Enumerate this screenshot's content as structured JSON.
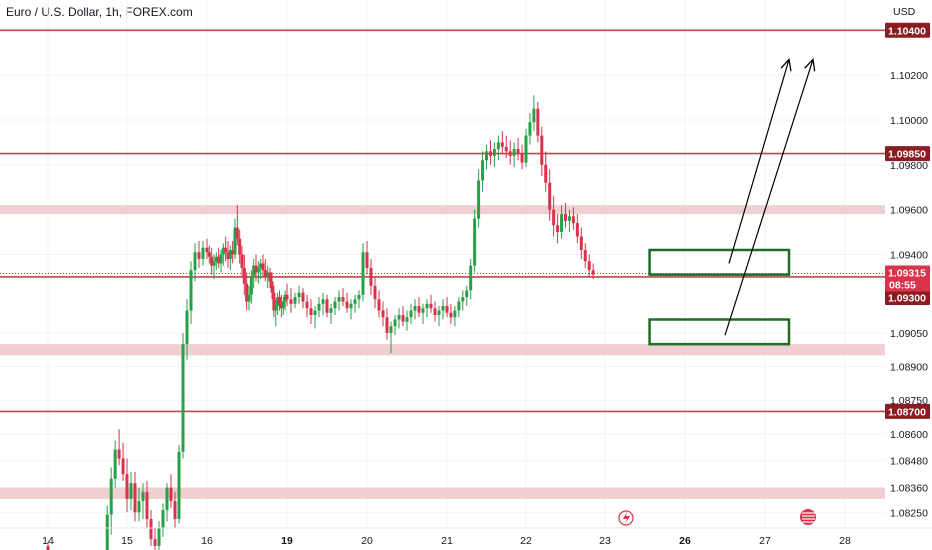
{
  "chart_data": {
    "type": "candlestick",
    "title": "Euro / U.S. Dollar, 1h, FOREX.com",
    "currency": "USD",
    "ylim": [
      1.0818,
      1.10535
    ],
    "y_ticks": [
      "1.10200",
      "1.10000",
      "1.09800",
      "1.09600",
      "1.09400",
      "1.09050",
      "1.08900",
      "1.08750",
      "1.08600",
      "1.08480",
      "1.08360",
      "1.08250"
    ],
    "x_ticks": [
      {
        "label": "14",
        "bold": false
      },
      {
        "label": "15",
        "bold": false
      },
      {
        "label": "16",
        "bold": false
      },
      {
        "label": "19",
        "bold": true
      },
      {
        "label": "20",
        "bold": false
      },
      {
        "label": "21",
        "bold": false
      },
      {
        "label": "22",
        "bold": false
      },
      {
        "label": "23",
        "bold": false
      },
      {
        "label": "26",
        "bold": true
      },
      {
        "label": "27",
        "bold": false
      },
      {
        "label": "28",
        "bold": false
      }
    ],
    "horizontal_lines": [
      {
        "price": 1.104,
        "label": "1.10400"
      },
      {
        "price": 1.0985,
        "label": "1.09850"
      },
      {
        "price": 1.087,
        "label": "1.08700"
      },
      {
        "price": 1.093,
        "label": "1.09300"
      }
    ],
    "zones": [
      {
        "from": 1.0958,
        "to": 1.0962
      },
      {
        "from": 1.0895,
        "to": 1.09
      },
      {
        "from": 1.0831,
        "to": 1.0836
      }
    ],
    "current_price": {
      "price": 1.09315,
      "label": "1.09315",
      "countdown": "08:55"
    },
    "boxes": [
      {
        "time_from": 25.6,
        "time_to": 27.3,
        "price_from": 1.0931,
        "price_to": 1.0942
      },
      {
        "time_from": 25.6,
        "time_to": 27.3,
        "price_from": 1.09,
        "price_to": 1.0911
      }
    ],
    "arrows": [
      {
        "from": [
          26.55,
          1.0936
        ],
        "to": [
          27.3,
          1.1027
        ]
      },
      {
        "from": [
          26.5,
          1.0904
        ],
        "to": [
          27.6,
          1.1027
        ]
      }
    ],
    "colors": {
      "up": "#26a246",
      "down": "#d9324a",
      "line": "#b34b4b",
      "zone": "#efcfd1",
      "box": "#1e6b25",
      "badge": "#8a1d22",
      "arrow": "#000000"
    },
    "candles": [
      [
        14.0,
        1.081,
        1.0812,
        1.08,
        1.0805
      ],
      [
        14.75,
        1.0805,
        1.0828,
        1.0801,
        1.0824
      ],
      [
        14.8,
        1.0824,
        1.0845,
        1.0815,
        1.084
      ],
      [
        14.85,
        1.084,
        1.0857,
        1.0836,
        1.0853
      ],
      [
        14.9,
        1.0853,
        1.0862,
        1.0846,
        1.0849
      ],
      [
        14.95,
        1.0849,
        1.0856,
        1.0839,
        1.0842
      ],
      [
        15.0,
        1.0842,
        1.0849,
        1.0825,
        1.0831
      ],
      [
        15.05,
        1.0831,
        1.0843,
        1.0826,
        1.0838
      ],
      [
        15.1,
        1.0838,
        1.0843,
        1.0821,
        1.0825
      ],
      [
        15.15,
        1.0825,
        1.0836,
        1.0821,
        1.083
      ],
      [
        15.2,
        1.083,
        1.0838,
        1.0822,
        1.0834
      ],
      [
        15.25,
        1.0834,
        1.0839,
        1.0818,
        1.0822
      ],
      [
        15.3,
        1.0822,
        1.0826,
        1.081,
        1.0813
      ],
      [
        15.35,
        1.0813,
        1.0818,
        1.0806,
        1.081
      ],
      [
        15.4,
        1.081,
        1.0821,
        1.0808,
        1.0818
      ],
      [
        15.45,
        1.0818,
        1.0829,
        1.0814,
        1.0826
      ],
      [
        15.5,
        1.0826,
        1.0838,
        1.0821,
        1.0836
      ],
      [
        15.55,
        1.0836,
        1.0842,
        1.0827,
        1.083
      ],
      [
        15.6,
        1.083,
        1.0834,
        1.0818,
        1.0822
      ],
      [
        15.65,
        1.0822,
        1.0855,
        1.082,
        1.0852
      ],
      [
        15.7,
        1.0852,
        1.0905,
        1.0849,
        1.09
      ],
      [
        15.75,
        1.09,
        1.092,
        1.0893,
        1.0915
      ],
      [
        15.8,
        1.0915,
        1.0937,
        1.0909,
        1.0933
      ],
      [
        15.85,
        1.0933,
        1.0945,
        1.0928,
        1.0941
      ],
      [
        15.9,
        1.0941,
        1.0946,
        1.0934,
        1.0938
      ],
      [
        15.95,
        1.0938,
        1.0946,
        1.0935,
        1.0943
      ],
      [
        16.0,
        1.0943,
        1.0947,
        1.0938,
        1.0941
      ],
      [
        16.05,
        1.0941,
        1.0944,
        1.0936,
        1.0939
      ],
      [
        16.1,
        1.0939,
        1.0943,
        1.0931,
        1.0935
      ],
      [
        16.15,
        1.0935,
        1.094,
        1.0929,
        1.0937
      ],
      [
        16.2,
        1.0937,
        1.0941,
        1.0933,
        1.0939
      ],
      [
        16.25,
        1.0939,
        1.0943,
        1.0934,
        1.0936
      ],
      [
        16.3,
        1.0936,
        1.0942,
        1.0932,
        1.094
      ],
      [
        16.35,
        1.094,
        1.0945,
        1.0935,
        1.0943
      ],
      [
        16.4,
        1.0943,
        1.0948,
        1.0937,
        1.0941
      ],
      [
        16.45,
        1.0941,
        1.0946,
        1.0934,
        1.0938
      ],
      [
        16.5,
        1.0938,
        1.0944,
        1.0933,
        1.0942
      ],
      [
        16.55,
        1.0942,
        1.0946,
        1.0936,
        1.094
      ],
      [
        16.6,
        1.094,
        1.0956,
        1.0938,
        1.0952
      ],
      [
        16.65,
        1.0952,
        1.0962,
        1.0944,
        1.0947
      ],
      [
        16.7,
        1.0947,
        1.0951,
        1.0936,
        1.094
      ],
      [
        16.75,
        1.094,
        1.0944,
        1.093,
        1.0934
      ],
      [
        16.8,
        1.0934,
        1.094,
        1.0922,
        1.0927
      ],
      [
        16.85,
        1.0927,
        1.0932,
        1.0915,
        1.0919
      ],
      [
        16.9,
        1.0919,
        1.0926,
        1.0915,
        1.0922
      ],
      [
        16.95,
        1.0922,
        1.0933,
        1.0918,
        1.093
      ],
      [
        17.0,
        1.093,
        1.0938,
        1.0925,
        1.0935
      ],
      [
        17.05,
        1.0935,
        1.094,
        1.0928,
        1.0932
      ],
      [
        17.1,
        1.0932,
        1.0937,
        1.0927,
        1.0934
      ],
      [
        17.15,
        1.0934,
        1.0938,
        1.0929,
        1.0936
      ],
      [
        17.2,
        1.0936,
        1.094,
        1.093,
        1.0933
      ],
      [
        17.25,
        1.0933,
        1.0938,
        1.0928,
        1.093
      ],
      [
        17.3,
        1.093,
        1.0935,
        1.0925,
        1.0932
      ],
      [
        17.35,
        1.0932,
        1.0934,
        1.0925,
        1.0928
      ],
      [
        18.6,
        1.0928,
        1.0932,
        1.092,
        1.0923
      ],
      [
        18.65,
        1.0923,
        1.0926,
        1.0912,
        1.0915
      ],
      [
        18.7,
        1.0915,
        1.092,
        1.0908,
        1.0917
      ],
      [
        18.75,
        1.0917,
        1.0923,
        1.0913,
        1.0921
      ],
      [
        18.8,
        1.0921,
        1.0924,
        1.0915,
        1.0918
      ],
      [
        18.85,
        1.0918,
        1.0922,
        1.0912,
        1.0916
      ],
      [
        18.9,
        1.0916,
        1.0921,
        1.0913,
        1.0919
      ],
      [
        18.95,
        1.0919,
        1.0924,
        1.0915,
        1.0922
      ],
      [
        19.0,
        1.0922,
        1.0927,
        1.0917,
        1.092
      ],
      [
        19.05,
        1.092,
        1.0925,
        1.0914,
        1.0918
      ],
      [
        19.1,
        1.0918,
        1.0923,
        1.0916,
        1.0921
      ],
      [
        19.15,
        1.0921,
        1.0926,
        1.0918,
        1.0923
      ],
      [
        19.2,
        1.0923,
        1.0925,
        1.0916,
        1.0919
      ],
      [
        19.25,
        1.0919,
        1.0922,
        1.0912,
        1.0916
      ],
      [
        19.3,
        1.0916,
        1.092,
        1.0909,
        1.0913
      ],
      [
        19.35,
        1.0913,
        1.0917,
        1.0907,
        1.0915
      ],
      [
        19.4,
        1.0915,
        1.0921,
        1.0912,
        1.0918
      ],
      [
        19.45,
        1.0918,
        1.0923,
        1.0913,
        1.092
      ],
      [
        19.5,
        1.092,
        1.0922,
        1.0912,
        1.0914
      ],
      [
        19.55,
        1.0914,
        1.0918,
        1.0909,
        1.0916
      ],
      [
        19.6,
        1.0916,
        1.0921,
        1.0913,
        1.0919
      ],
      [
        19.65,
        1.0919,
        1.0924,
        1.0915,
        1.0921
      ],
      [
        19.7,
        1.0921,
        1.0925,
        1.0917,
        1.0919
      ],
      [
        19.75,
        1.0919,
        1.0923,
        1.0914,
        1.0916
      ],
      [
        19.8,
        1.0916,
        1.092,
        1.0911,
        1.0918
      ],
      [
        19.85,
        1.0918,
        1.0922,
        1.0914,
        1.092
      ],
      [
        19.9,
        1.092,
        1.0924,
        1.0916,
        1.0922
      ],
      [
        19.95,
        1.0922,
        1.0945,
        1.0919,
        1.0941
      ],
      [
        20.0,
        1.0941,
        1.0946,
        1.0931,
        1.0934
      ],
      [
        20.05,
        1.0934,
        1.0938,
        1.0922,
        1.0926
      ],
      [
        20.1,
        1.0926,
        1.093,
        1.0916,
        1.092
      ],
      [
        20.15,
        1.092,
        1.0924,
        1.0912,
        1.0915
      ],
      [
        20.2,
        1.0915,
        1.0919,
        1.0908,
        1.0912
      ],
      [
        20.25,
        1.0912,
        1.0916,
        1.0902,
        1.0905
      ],
      [
        20.3,
        1.0905,
        1.091,
        1.0896,
        1.0908
      ],
      [
        20.35,
        1.0908,
        1.0913,
        1.0904,
        1.0911
      ],
      [
        20.4,
        1.0911,
        1.0916,
        1.0907,
        1.0913
      ],
      [
        20.45,
        1.0913,
        1.0917,
        1.0908,
        1.091
      ],
      [
        20.5,
        1.091,
        1.0915,
        1.0906,
        1.0912
      ],
      [
        20.55,
        1.0912,
        1.0918,
        1.0909,
        1.0915
      ],
      [
        20.6,
        1.0915,
        1.092,
        1.0911,
        1.0917
      ],
      [
        20.65,
        1.0917,
        1.0921,
        1.0912,
        1.0914
      ],
      [
        20.7,
        1.0914,
        1.0918,
        1.0909,
        1.0916
      ],
      [
        20.75,
        1.0916,
        1.092,
        1.0912,
        1.0918
      ],
      [
        20.8,
        1.0918,
        1.0922,
        1.0914,
        1.0916
      ],
      [
        20.85,
        1.0916,
        1.0919,
        1.091,
        1.0913
      ],
      [
        20.9,
        1.0913,
        1.0917,
        1.0908,
        1.0915
      ],
      [
        20.95,
        1.0915,
        1.092,
        1.0911,
        1.0917
      ],
      [
        21.0,
        1.0917,
        1.0921,
        1.0912,
        1.0914
      ],
      [
        21.05,
        1.0914,
        1.0918,
        1.0909,
        1.0912
      ],
      [
        21.1,
        1.0912,
        1.0917,
        1.0908,
        1.0915
      ],
      [
        21.15,
        1.0915,
        1.0921,
        1.0912,
        1.0919
      ],
      [
        21.2,
        1.0919,
        1.0924,
        1.0915,
        1.0921
      ],
      [
        21.25,
        1.0921,
        1.0926,
        1.0917,
        1.0924
      ],
      [
        21.3,
        1.0924,
        1.0938,
        1.092,
        1.0935
      ],
      [
        21.35,
        1.0935,
        1.096,
        1.0932,
        1.0956
      ],
      [
        21.4,
        1.0956,
        1.0978,
        1.0952,
        1.0973
      ],
      [
        21.45,
        1.0973,
        1.0986,
        1.0968,
        1.0982
      ],
      [
        21.5,
        1.0982,
        1.0989,
        1.0978,
        1.0986
      ],
      [
        21.55,
        1.0986,
        1.0991,
        1.098,
        1.0984
      ],
      [
        21.6,
        1.0984,
        1.099,
        1.0979,
        1.0987
      ],
      [
        21.65,
        1.0987,
        1.0993,
        1.0982,
        1.099
      ],
      [
        21.7,
        1.099,
        1.0995,
        1.0985,
        1.0988
      ],
      [
        21.75,
        1.0988,
        1.0993,
        1.0983,
        1.0986
      ],
      [
        21.8,
        1.0986,
        1.0991,
        1.098,
        1.0984
      ],
      [
        21.85,
        1.0984,
        1.099,
        1.0979,
        1.0987
      ],
      [
        21.9,
        1.0987,
        1.0992,
        1.0982,
        1.0985
      ],
      [
        21.95,
        1.0985,
        1.0989,
        1.0978,
        1.0981
      ],
      [
        22.0,
        1.0981,
        1.0996,
        1.0979,
        1.0993
      ],
      [
        22.05,
        1.0993,
        1.1003,
        1.0989,
        1.0999
      ],
      [
        22.1,
        1.0999,
        1.1011,
        1.0995,
        1.1005
      ],
      [
        22.15,
        1.1005,
        1.1008,
        1.099,
        1.0993
      ],
      [
        22.2,
        1.0993,
        1.0997,
        1.0975,
        1.098
      ],
      [
        22.25,
        1.098,
        1.0986,
        1.0968,
        1.0972
      ],
      [
        22.3,
        1.0972,
        1.0978,
        1.0955,
        1.096
      ],
      [
        22.35,
        1.096,
        1.0966,
        1.0948,
        1.0953
      ],
      [
        22.4,
        1.0953,
        1.0958,
        1.0945,
        1.095
      ],
      [
        22.45,
        1.095,
        1.0962,
        1.0947,
        1.0958
      ],
      [
        22.5,
        1.0958,
        1.0963,
        1.0952,
        1.0955
      ],
      [
        22.55,
        1.0955,
        1.096,
        1.095,
        1.0957
      ],
      [
        22.6,
        1.0957,
        1.0961,
        1.0951,
        1.0954
      ],
      [
        22.65,
        1.0954,
        1.0958,
        1.0945,
        1.0948
      ],
      [
        22.7,
        1.0948,
        1.0952,
        1.0938,
        1.0942
      ],
      [
        22.75,
        1.0942,
        1.0945,
        1.0934,
        1.0937
      ],
      [
        22.8,
        1.0937,
        1.094,
        1.093,
        1.0933
      ],
      [
        22.85,
        1.0933,
        1.0936,
        1.0929,
        1.0931
      ]
    ]
  }
}
